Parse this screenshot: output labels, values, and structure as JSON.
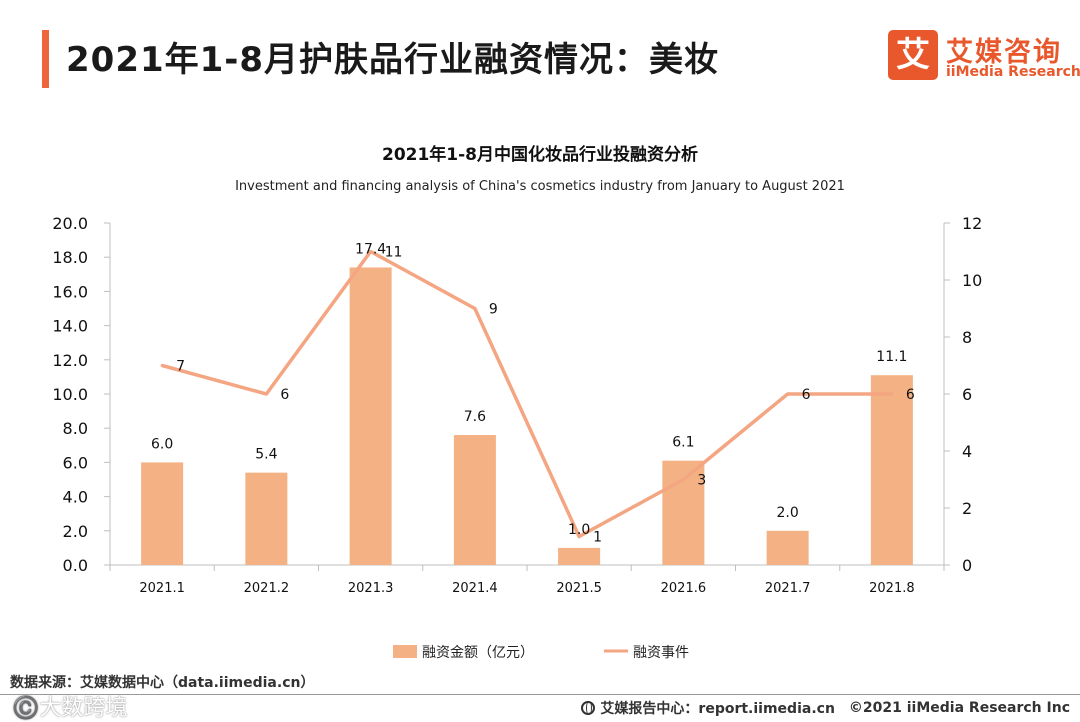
{
  "header": {
    "title": "2021年1-8月护肤品行业融资情况：美妆"
  },
  "brand": {
    "logo_char": "艾",
    "name": "艾媒咨询",
    "sub": "iiMedia Research"
  },
  "colors": {
    "accent": "#f0663c",
    "bar": "#f4b183",
    "line": "#f4a582",
    "axis": "#bfbfbf",
    "brand": "#e8582c"
  },
  "chart_data": {
    "type": "bar+line",
    "title": "2021年1-8月中国化妆品行业投融资分析",
    "subtitle": "Investment and financing analysis of China's cosmetics industry from January to August 2021",
    "categories": [
      "2021.1",
      "2021.2",
      "2021.3",
      "2021.4",
      "2021.5",
      "2021.6",
      "2021.7",
      "2021.8"
    ],
    "series": [
      {
        "name": "融资金额（亿元）",
        "type": "bar",
        "axis": "left",
        "values": [
          6.0,
          5.4,
          17.4,
          7.6,
          1.0,
          6.1,
          2.0,
          11.1
        ],
        "labels": [
          "6.0",
          "5.4",
          "17.4",
          "7.6",
          "1.0",
          "6.1",
          "2.0",
          "11.1"
        ]
      },
      {
        "name": "融资事件",
        "type": "line",
        "axis": "right",
        "values": [
          7,
          6,
          11,
          9,
          1,
          3,
          6,
          6
        ],
        "labels": [
          "7",
          "6",
          "11",
          "9",
          "1",
          "3",
          "6",
          "6"
        ]
      }
    ],
    "y_left": {
      "min": 0,
      "max": 20,
      "step": 2,
      "ticks": [
        "0.0",
        "2.0",
        "4.0",
        "6.0",
        "8.0",
        "10.0",
        "12.0",
        "14.0",
        "16.0",
        "18.0",
        "20.0"
      ]
    },
    "y_right": {
      "min": 0,
      "max": 12,
      "step": 2,
      "ticks": [
        "0",
        "2",
        "4",
        "6",
        "8",
        "10",
        "12"
      ]
    },
    "legend_position": "bottom-center"
  },
  "footer": {
    "source": "数据来源：艾媒数据中心（data.iimedia.cn）",
    "report_site": "艾媒报告中心：report.iimedia.cn",
    "copyright": "©2021  iiMedia Research  Inc",
    "watermark": "©️大数跨境"
  }
}
